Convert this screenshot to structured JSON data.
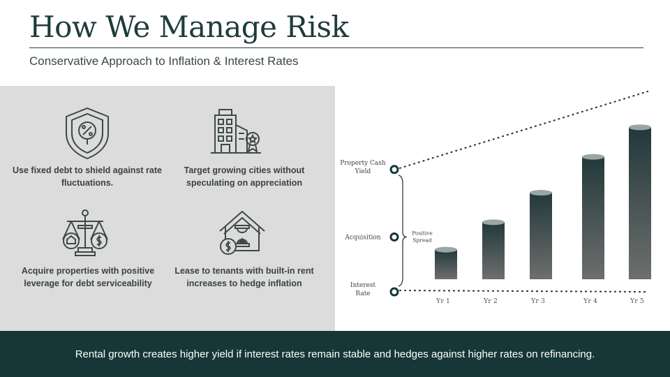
{
  "header": {
    "title": "How We Manage Risk",
    "subtitle": "Conservative Approach to Inflation & Interest Rates"
  },
  "strategies": [
    {
      "icon": "percent-shield-icon",
      "text": "Use fixed debt to shield against rate fluctuations."
    },
    {
      "icon": "city-buildings-icon",
      "text": "Target growing cities without speculating on appreciation"
    },
    {
      "icon": "balance-scale-icon",
      "text": "Acquire properties with positive leverage for debt serviceability"
    },
    {
      "icon": "house-hourglass-icon",
      "text": "Lease to tenants with built-in rent increases to hedge inflation"
    }
  ],
  "chart_data": {
    "type": "bar",
    "title": "",
    "categories": [
      "Yr 1",
      "Yr 2",
      "Yr 3",
      "Yr 4",
      "Yr 5"
    ],
    "values": [
      1.0,
      1.65,
      2.35,
      3.2,
      3.9
    ],
    "y_markers": [
      {
        "label": "Property Cash Yield",
        "value": 2.9
      },
      {
        "label": "Acquisition",
        "value": 1.3
      },
      {
        "label": "Interest Rate",
        "value": 0
      }
    ],
    "bracket_label": "Positive Spread",
    "lines": [
      {
        "style": "dotted",
        "from": [
          0,
          2.9
        ],
        "to": [
          5,
          4.75
        ]
      },
      {
        "style": "dotted",
        "from": [
          0,
          0
        ],
        "to": [
          5,
          0
        ]
      }
    ],
    "ylim": [
      0,
      4.8
    ],
    "colors": {
      "bar_top": "#22393a",
      "bar_bottom": "#6e6e6e",
      "bar_cap": "#9aa5a5",
      "marker": "#173637"
    }
  },
  "footer": {
    "text": "Rental growth creates higher yield if interest rates remain stable and hedges against higher rates on refinancing."
  }
}
